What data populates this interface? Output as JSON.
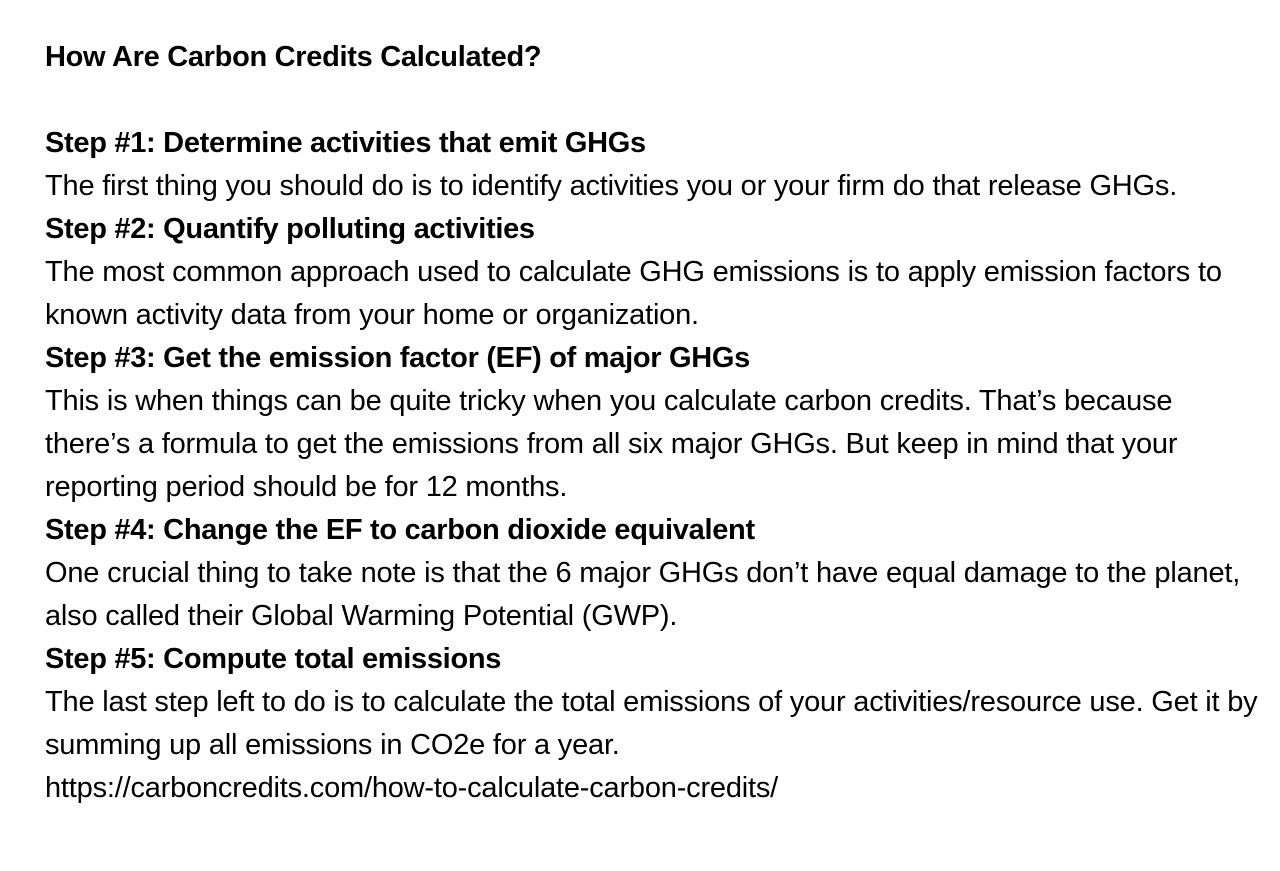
{
  "document": {
    "title": "How Are Carbon Credits Calculated?",
    "steps": [
      {
        "heading": "Step #1: Determine activities that emit GHGs",
        "body": "The first thing you should do is to identify activities you or your firm do that release GHGs."
      },
      {
        "heading": "Step #2: Quantify polluting activities",
        "body": "The most common approach used to calculate GHG emissions is to apply emission factors to known activity data from your home or organization."
      },
      {
        "heading": "Step #3: Get the emission factor (EF) of major GHGs",
        "body": "This is when things can be quite tricky when you calculate carbon credits. That’s because there’s a formula to get the emissions from all six major GHGs. But keep in mind that your reporting period should be for 12 months."
      },
      {
        "heading": "Step #4: Change the EF to carbon dioxide equivalent",
        "body": "One crucial thing to take note is that the 6 major GHGs don’t have equal damage to the planet, also called their Global Warming Potential (GWP)."
      },
      {
        "heading": "Step #5: Compute total emissions",
        "body": "The last step left to do is to calculate the total emissions of your activities/resource use. Get it by summing up all emissions in CO2e for a year."
      }
    ],
    "source_url": "https://carboncredits.com/how-to-calculate-carbon-credits/"
  }
}
